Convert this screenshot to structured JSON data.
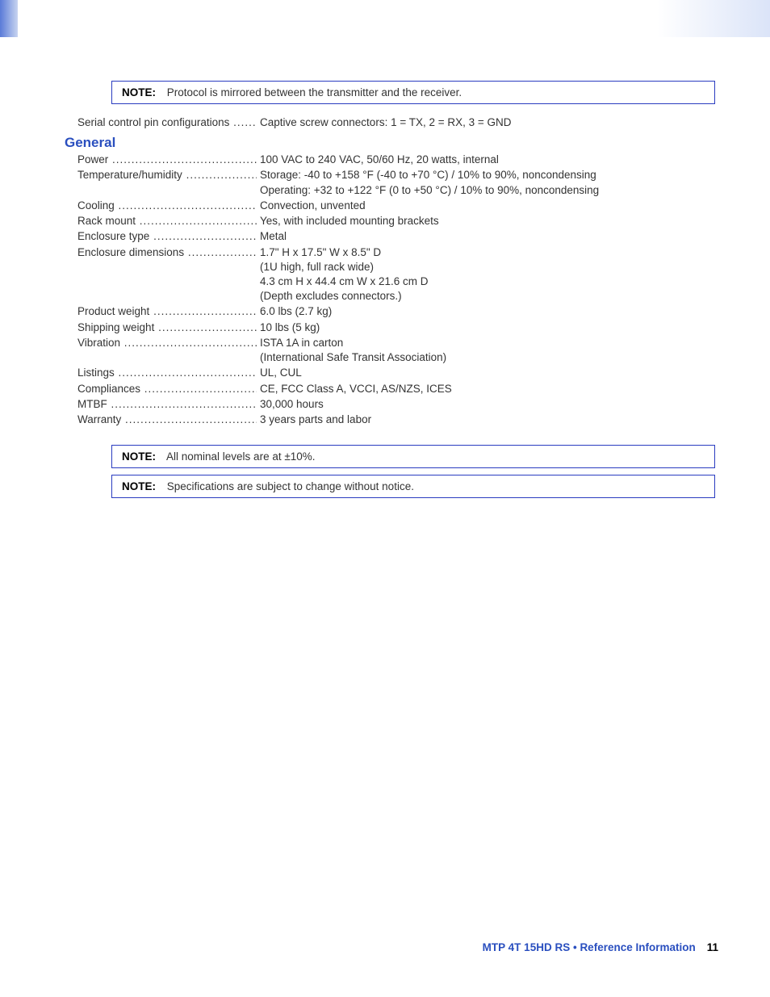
{
  "colors": {
    "accent": "#2a4fbf",
    "note_border": "#2a3cc0",
    "text": "#333333",
    "topbar_left": "#5a7bd8",
    "topbar_fade": "#c8d4f0"
  },
  "notes": {
    "top": {
      "label": "NOTE:",
      "text": "Protocol is mirrored between the transmitter and the receiver."
    },
    "bottom1": {
      "label": "NOTE:",
      "text": "All nominal levels are at ±10%."
    },
    "bottom2": {
      "label": "NOTE:",
      "text": "Specifications are subject to change without notice."
    }
  },
  "serial_row": {
    "label": "Serial control pin configurations",
    "value": "Captive screw connectors: 1 = TX, 2 = RX, 3 = GND"
  },
  "section": {
    "title": "General",
    "rows": [
      {
        "label": "Power",
        "value": "100 VAC to 240 VAC, 50/60 Hz, 20 watts, internal"
      },
      {
        "label": "Temperature/humidity",
        "value": "Storage: -40 to +158 °F (-40 to +70 °C) / 10% to 90%, noncondensing",
        "cont": [
          "Operating: +32 to +122 °F (0 to +50 °C) / 10% to 90%, noncondensing"
        ]
      },
      {
        "label": "Cooling",
        "value": "Convection, unvented"
      },
      {
        "label": "Rack mount",
        "value": "Yes, with included mounting brackets"
      },
      {
        "label": "Enclosure type",
        "value": "Metal"
      },
      {
        "label": "Enclosure dimensions",
        "value": "1.7\" H x 17.5\" W x 8.5\" D",
        "cont": [
          "(1U high, full rack wide)",
          "4.3 cm H x 44.4 cm W x  21.6 cm D",
          "(Depth excludes connectors.)"
        ]
      },
      {
        "label": "Product weight",
        "value": "6.0 lbs (2.7 kg)"
      },
      {
        "label": "Shipping weight",
        "value": "10 lbs (5 kg)"
      },
      {
        "label": "Vibration",
        "value": "ISTA 1A in carton",
        "cont": [
          "(International Safe Transit Association)"
        ]
      },
      {
        "label": "Listings",
        "value": "UL, CUL"
      },
      {
        "label": "Compliances",
        "value": "CE, FCC Class A, VCCI, AS/NZS, ICES"
      },
      {
        "label": "MTBF",
        "value": "30,000 hours"
      },
      {
        "label": "Warranty",
        "value": "3 years parts and labor"
      }
    ]
  },
  "footer": {
    "product": "MTP 4T 15HD RS",
    "sep": " • ",
    "section": "Reference Information",
    "page": "11"
  }
}
